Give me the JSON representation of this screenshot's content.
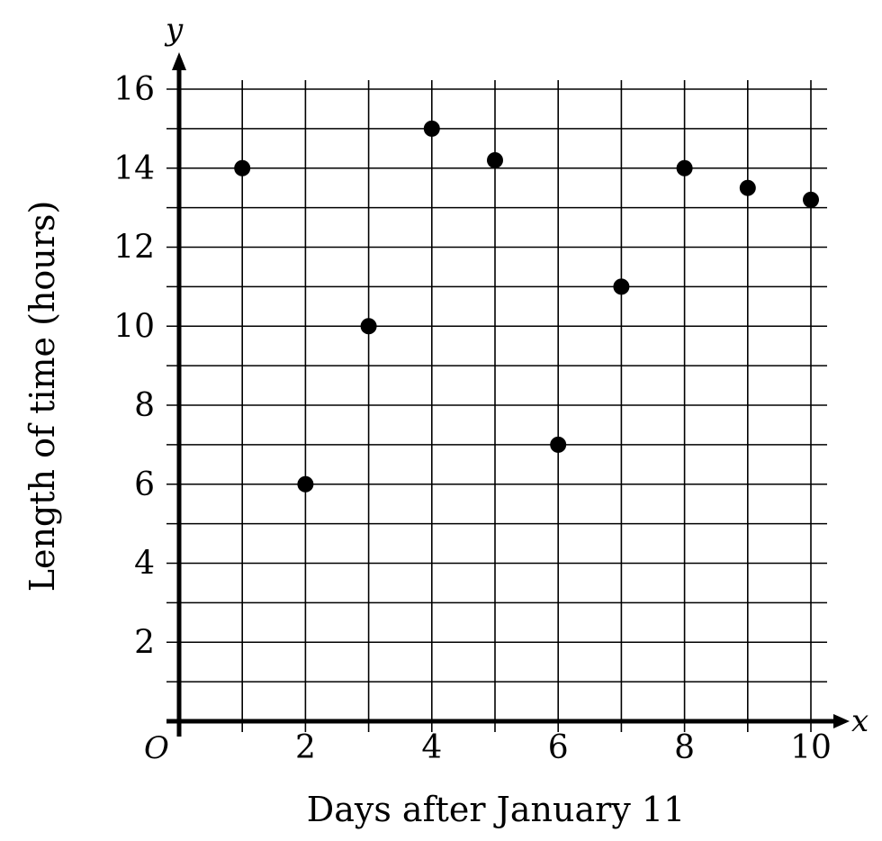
{
  "chart_data": {
    "type": "scatter",
    "title": "",
    "xlabel": "Days after January 11",
    "ylabel": "Length of time (hours)",
    "x_axis_letter": "x",
    "y_axis_letter": "y",
    "origin_label": "O",
    "xlim": [
      0,
      10
    ],
    "ylim": [
      0,
      16
    ],
    "x_ticks": [
      "2",
      "4",
      "6",
      "8",
      "10"
    ],
    "y_ticks": [
      "2",
      "4",
      "6",
      "8",
      "10",
      "12",
      "14",
      "16"
    ],
    "grid": true,
    "grid_step_x": 1,
    "grid_step_y": 1,
    "points": [
      {
        "x": 1,
        "y": 14
      },
      {
        "x": 2,
        "y": 6
      },
      {
        "x": 3,
        "y": 10
      },
      {
        "x": 4,
        "y": 15
      },
      {
        "x": 5,
        "y": 14.2
      },
      {
        "x": 6,
        "y": 7
      },
      {
        "x": 7,
        "y": 11
      },
      {
        "x": 8,
        "y": 14
      },
      {
        "x": 9,
        "y": 13.5
      },
      {
        "x": 10,
        "y": 13.2
      }
    ],
    "marker_color": "#000000"
  }
}
